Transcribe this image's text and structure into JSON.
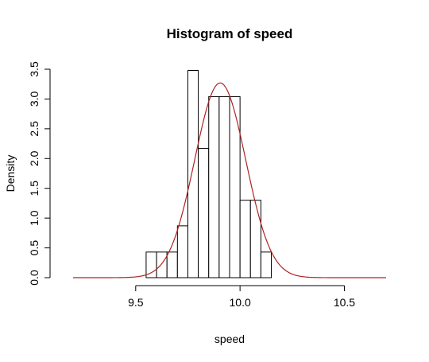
{
  "chart_data": {
    "type": "bar",
    "title": "Histogram of speed",
    "xlabel": "speed",
    "ylabel": "Density",
    "xlim": [
      9.2,
      10.7
    ],
    "ylim": [
      0,
      3.5
    ],
    "x_ticks": [
      9.5,
      10.0,
      10.5
    ],
    "x_tick_labels": [
      "9.5",
      "10.0",
      "10.5"
    ],
    "y_ticks": [
      0,
      0.5,
      1.0,
      1.5,
      2.0,
      2.5,
      3.0,
      3.5
    ],
    "y_tick_labels": [
      "0.0",
      "0.5",
      "1.0",
      "1.5",
      "2.0",
      "2.5",
      "3.0",
      "3.5"
    ],
    "grid": false,
    "bins": [
      {
        "x0": 9.55,
        "x1": 9.6,
        "density": 0.43
      },
      {
        "x0": 9.6,
        "x1": 9.65,
        "density": 0.43
      },
      {
        "x0": 9.65,
        "x1": 9.7,
        "density": 0.43
      },
      {
        "x0": 9.7,
        "x1": 9.75,
        "density": 0.87
      },
      {
        "x0": 9.75,
        "x1": 9.8,
        "density": 3.48
      },
      {
        "x0": 9.8,
        "x1": 9.85,
        "density": 2.17
      },
      {
        "x0": 9.85,
        "x1": 9.9,
        "density": 3.04
      },
      {
        "x0": 9.9,
        "x1": 9.95,
        "density": 3.04
      },
      {
        "x0": 9.95,
        "x1": 10.0,
        "density": 3.04
      },
      {
        "x0": 10.0,
        "x1": 10.05,
        "density": 1.3
      },
      {
        "x0": 10.05,
        "x1": 10.1,
        "density": 1.3
      },
      {
        "x0": 10.1,
        "x1": 10.15,
        "density": 0.43
      }
    ],
    "density_curve": {
      "type": "normal",
      "mean": 9.905,
      "sd": 0.122,
      "x_range": [
        9.2,
        10.7
      ],
      "color": "#b22222"
    },
    "bar_fill": "#ffffff",
    "bar_stroke": "#000000"
  }
}
